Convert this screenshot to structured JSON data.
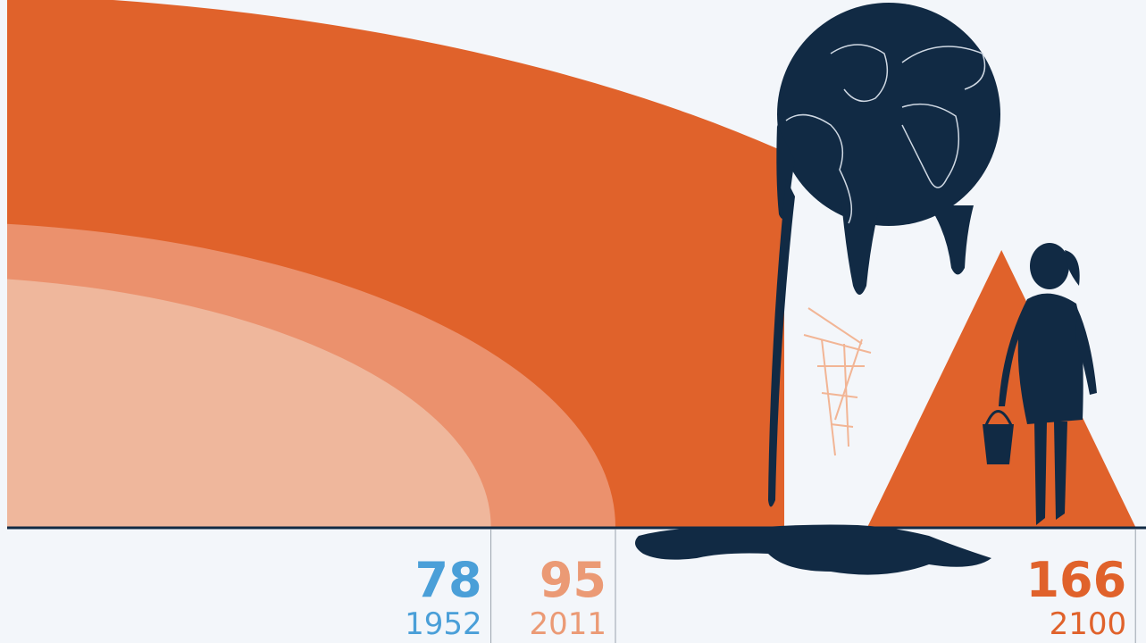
{
  "chart_data": {
    "type": "semicircle",
    "categories": [
      "1952",
      "2011",
      "2100"
    ],
    "values": [
      78,
      95,
      166
    ],
    "colors": [
      "#efb79c",
      "#eb916d",
      "#e0622b"
    ],
    "label_colors": [
      "#4a9fd8",
      "#eb9a75",
      "#e0622b"
    ]
  }
}
